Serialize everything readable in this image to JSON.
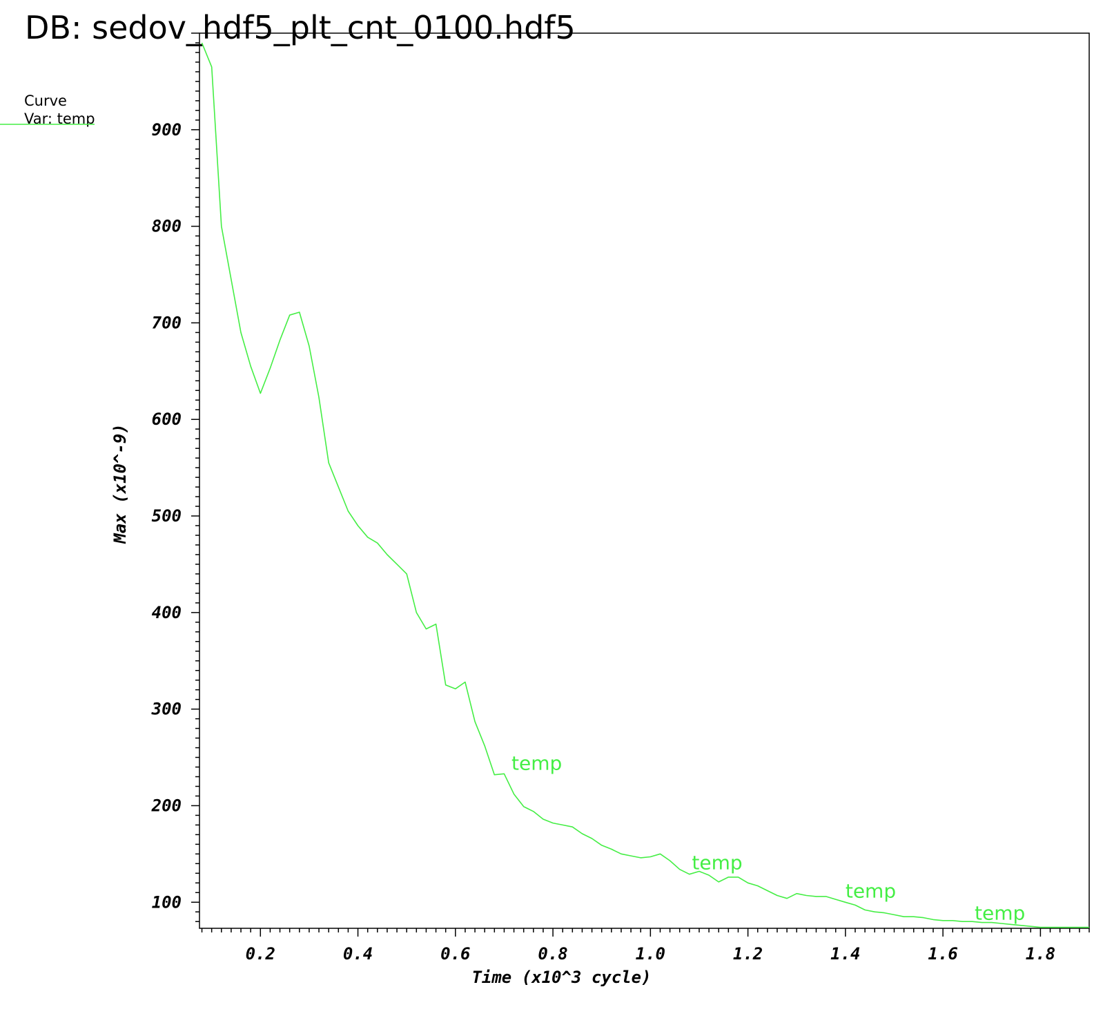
{
  "title": "DB: sedov_hdf5_plt_cnt_0100.hdf5",
  "legend": {
    "heading": "Curve",
    "var_label": "Var: temp"
  },
  "colors": {
    "curve": "#44ee44",
    "axes": "#000000",
    "background": "#ffffff"
  },
  "chart_data": {
    "type": "line",
    "xlabel": "Time (x10^3 cycle)",
    "ylabel": "Max (x10^-9)",
    "xlim": [
      0.075,
      1.9
    ],
    "ylim": [
      73,
      1000
    ],
    "xticks": [
      {
        "value": 0.2,
        "label": "0.2"
      },
      {
        "value": 0.4,
        "label": "0.4"
      },
      {
        "value": 0.6,
        "label": "0.6"
      },
      {
        "value": 0.8,
        "label": "0.8"
      },
      {
        "value": 1.0,
        "label": "1.0"
      },
      {
        "value": 1.2,
        "label": "1.2"
      },
      {
        "value": 1.4,
        "label": "1.4"
      },
      {
        "value": 1.6,
        "label": "1.6"
      },
      {
        "value": 1.8,
        "label": "1.8"
      }
    ],
    "yticks": [
      {
        "value": 100,
        "label": "100"
      },
      {
        "value": 200,
        "label": "200"
      },
      {
        "value": 300,
        "label": "300"
      },
      {
        "value": 400,
        "label": "400"
      },
      {
        "value": 500,
        "label": "500"
      },
      {
        "value": 600,
        "label": "600"
      },
      {
        "value": 700,
        "label": "700"
      },
      {
        "value": 800,
        "label": "800"
      },
      {
        "value": 900,
        "label": "900"
      }
    ],
    "series": [
      {
        "label_text": "temp",
        "x": [
          0.08,
          0.1,
          0.12,
          0.14,
          0.16,
          0.18,
          0.2,
          0.22,
          0.24,
          0.26,
          0.28,
          0.3,
          0.32,
          0.34,
          0.36,
          0.38,
          0.4,
          0.42,
          0.44,
          0.46,
          0.48,
          0.5,
          0.52,
          0.54,
          0.56,
          0.58,
          0.6,
          0.62,
          0.64,
          0.66,
          0.68,
          0.7,
          0.72,
          0.74,
          0.76,
          0.78,
          0.8,
          0.82,
          0.84,
          0.86,
          0.88,
          0.9,
          0.92,
          0.94,
          0.96,
          0.98,
          1.0,
          1.02,
          1.04,
          1.06,
          1.08,
          1.1,
          1.12,
          1.14,
          1.16,
          1.18,
          1.2,
          1.22,
          1.24,
          1.26,
          1.28,
          1.3,
          1.32,
          1.34,
          1.36,
          1.38,
          1.4,
          1.42,
          1.44,
          1.46,
          1.48,
          1.5,
          1.52,
          1.54,
          1.56,
          1.58,
          1.6,
          1.62,
          1.64,
          1.66,
          1.68,
          1.7,
          1.72,
          1.74,
          1.76,
          1.78,
          1.8,
          1.82,
          1.84,
          1.86,
          1.88,
          1.9
        ],
        "y": [
          990,
          965,
          800,
          745,
          690,
          655,
          627,
          653,
          682,
          708,
          711,
          676,
          623,
          555,
          530,
          505,
          490,
          478,
          472,
          460,
          450,
          440,
          400,
          383,
          388,
          325,
          321,
          328,
          287,
          262,
          232,
          233,
          212,
          199,
          194,
          186,
          182,
          180,
          178,
          171,
          166,
          159,
          155,
          150,
          148,
          146,
          147,
          150,
          143,
          134,
          129,
          132,
          128,
          121,
          126,
          126,
          120,
          117,
          112,
          107,
          104,
          109,
          107,
          106,
          106,
          103,
          100,
          97,
          92,
          90,
          89,
          87,
          85,
          85,
          84,
          82,
          81,
          81,
          80,
          80,
          79,
          79,
          78,
          77,
          76,
          75,
          74,
          74,
          74,
          74,
          74,
          74
        ]
      }
    ],
    "curve_labels": [
      {
        "x": 0.715,
        "y": 237,
        "text": "temp"
      },
      {
        "x": 1.085,
        "y": 134,
        "text": "temp"
      },
      {
        "x": 1.4,
        "y": 105,
        "text": "temp"
      },
      {
        "x": 1.665,
        "y": 82,
        "text": "temp"
      }
    ],
    "grid": false,
    "legend_position": "top-left"
  }
}
